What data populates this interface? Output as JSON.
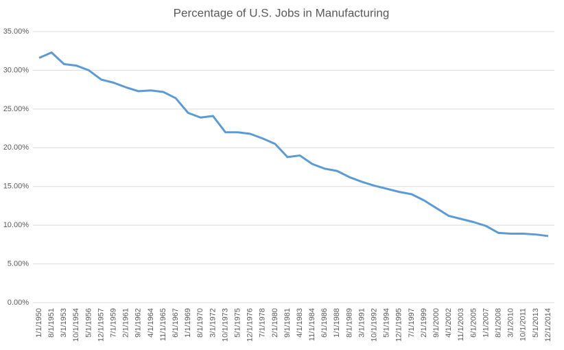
{
  "chart_data": {
    "type": "line",
    "title": "Percentage of U.S. Jobs in Manufacturing",
    "categories": [
      "1/1/1950",
      "8/1/1951",
      "3/1/1953",
      "10/1/1954",
      "5/1/1956",
      "12/1/1957",
      "7/1/1959",
      "2/1/1961",
      "9/1/1962",
      "4/1/1964",
      "11/1/1965",
      "6/1/1967",
      "1/1/1969",
      "8/1/1970",
      "3/1/1972",
      "10/1/1973",
      "5/1/1975",
      "12/1/1976",
      "7/1/1978",
      "2/1/1980",
      "9/1/1981",
      "4/1/1983",
      "11/1/1984",
      "6/1/1986",
      "1/1/1988",
      "8/1/1989",
      "3/1/1991",
      "10/1/1992",
      "5/1/1994",
      "12/1/1995",
      "7/1/1997",
      "2/1/1999",
      "9/1/2000",
      "4/1/2002",
      "11/1/2003",
      "6/1/2005",
      "1/1/2007",
      "8/1/2008",
      "3/1/2010",
      "10/1/2011",
      "5/1/2013",
      "12/1/2014"
    ],
    "series": [
      {
        "name": "Percentage of U.S. Jobs in Manufacturing",
        "color": "#5b9bd5",
        "values": [
          31.6,
          32.3,
          30.8,
          30.6,
          30.0,
          28.8,
          28.4,
          27.8,
          27.3,
          27.4,
          27.2,
          26.4,
          24.5,
          23.9,
          24.1,
          22.0,
          22.0,
          21.8,
          21.2,
          20.5,
          18.8,
          19.0,
          17.9,
          17.3,
          17.0,
          16.2,
          15.6,
          15.1,
          14.7,
          14.3,
          14.0,
          13.2,
          12.2,
          11.2,
          10.8,
          10.4,
          9.9,
          9.0,
          8.9,
          8.9,
          8.8,
          8.6
        ]
      }
    ],
    "ylim": [
      0,
      35
    ],
    "yticks": [
      {
        "value": 0,
        "label": "0.00%"
      },
      {
        "value": 5,
        "label": "5.00%"
      },
      {
        "value": 10,
        "label": "10.00%"
      },
      {
        "value": 15,
        "label": "15.00%"
      },
      {
        "value": 20,
        "label": "20.00%"
      },
      {
        "value": 25,
        "label": "25.00%"
      },
      {
        "value": 30,
        "label": "30.00%"
      },
      {
        "value": 35,
        "label": "35.00%"
      }
    ],
    "grid": true
  }
}
